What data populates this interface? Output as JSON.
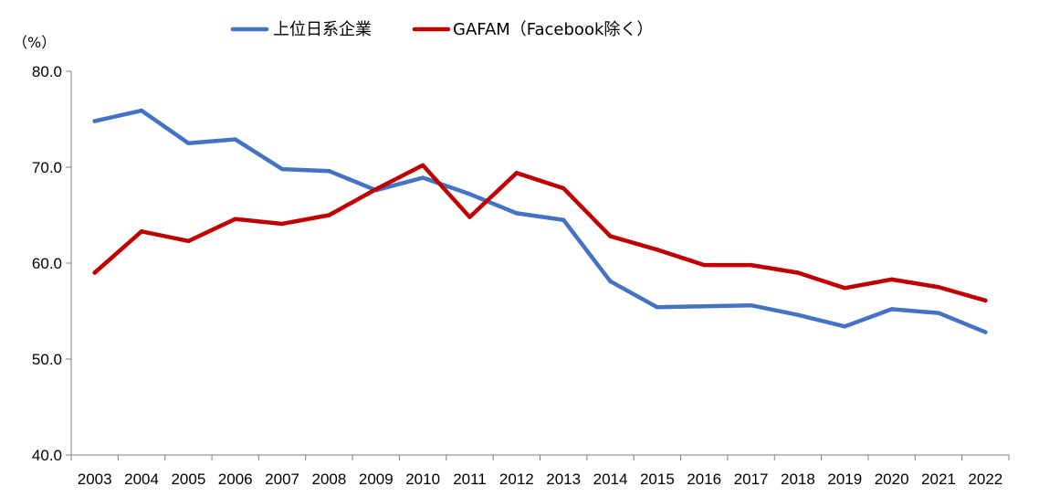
{
  "chart_data": {
    "type": "line",
    "unit_label": "（%）",
    "x": [
      "2003",
      "2004",
      "2005",
      "2006",
      "2007",
      "2008",
      "2009",
      "2010",
      "2011",
      "2012",
      "2013",
      "2014",
      "2015",
      "2016",
      "2017",
      "2018",
      "2019",
      "2020",
      "2021",
      "2022"
    ],
    "ylim": [
      40,
      80
    ],
    "yticks": [
      "80.0",
      "70.0",
      "60.0",
      "50.0",
      "40.0"
    ],
    "grid": false,
    "legend_position": "top",
    "series": [
      {
        "name": "上位日系企業",
        "color": "#4472C4",
        "values": [
          74.8,
          75.9,
          72.5,
          72.9,
          69.8,
          69.6,
          67.6,
          68.9,
          67.2,
          65.2,
          64.5,
          58.1,
          55.4,
          55.5,
          55.6,
          54.6,
          53.4,
          55.2,
          54.8,
          52.8
        ]
      },
      {
        "name": "GAFAM（Facebook除く）",
        "color": "#C00000",
        "values": [
          59.0,
          63.3,
          62.3,
          64.6,
          64.1,
          65.0,
          67.7,
          70.2,
          64.8,
          69.4,
          67.8,
          62.8,
          61.4,
          59.8,
          59.8,
          59.0,
          57.4,
          58.3,
          57.5,
          56.1
        ]
      }
    ]
  }
}
